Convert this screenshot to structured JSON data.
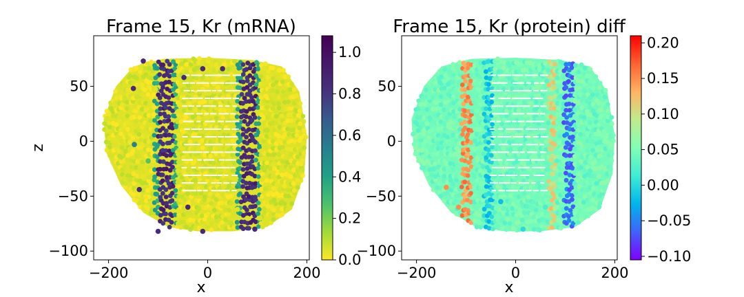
{
  "chart_data": [
    {
      "type": "scatter",
      "title": "Frame 15, Kr (mRNA)",
      "xlabel": "x",
      "ylabel": "z",
      "xlim": [
        -230,
        205
      ],
      "ylim": [
        -108,
        96
      ],
      "x_ticks": [
        -200,
        0,
        200
      ],
      "x_tick_labels": [
        "−200",
        "0",
        "200"
      ],
      "y_ticks": [
        -100,
        -50,
        0,
        50
      ],
      "y_tick_labels": [
        "−100",
        "−50",
        "0",
        "50"
      ],
      "grid": false,
      "colormap": "viridis_r",
      "colorbar": {
        "range": [
          0.0,
          1.08
        ],
        "ticks": [
          0.0,
          0.2,
          0.4,
          0.6,
          0.8,
          1.0
        ],
        "tick_labels": [
          "0.0",
          "0.2",
          "0.4",
          "0.6",
          "0.8",
          "1.0"
        ]
      },
      "embryo_outline": [
        [
          -210,
          20
        ],
        [
          -185,
          50
        ],
        [
          -150,
          68
        ],
        [
          -90,
          75
        ],
        [
          0,
          76
        ],
        [
          90,
          74
        ],
        [
          150,
          68
        ],
        [
          185,
          45
        ],
        [
          200,
          5
        ],
        [
          195,
          -30
        ],
        [
          170,
          -62
        ],
        [
          120,
          -78
        ],
        [
          50,
          -82
        ],
        [
          -20,
          -82
        ],
        [
          -80,
          -78
        ],
        [
          -130,
          -65
        ],
        [
          -175,
          -40
        ],
        [
          -205,
          -10
        ]
      ],
      "background_value": 0.05,
      "stripes": [
        {
          "center_x": -85,
          "width": 30,
          "value": 0.95
        },
        {
          "center_x": 82,
          "width": 30,
          "value": 0.95
        }
      ],
      "stripe_shoulder_value": 0.45,
      "hole_region": {
        "x_range": [
          -50,
          55
        ],
        "z_range": [
          -45,
          65
        ]
      },
      "outlier_points": [
        {
          "x": -138,
          "z": -44,
          "value": 0.95
        },
        {
          "x": -148,
          "z": -3,
          "value": 0.6
        },
        {
          "x": -150,
          "z": 48,
          "value": 0.95
        },
        {
          "x": -130,
          "z": 73,
          "value": 0.95
        },
        {
          "x": -105,
          "z": 47,
          "value": 0.05
        },
        {
          "x": -48,
          "z": 58,
          "value": 0.95
        },
        {
          "x": -25,
          "z": 48,
          "value": 0.05
        },
        {
          "x": 5,
          "z": 65,
          "value": 0.05
        },
        {
          "x": -10,
          "z": 66,
          "value": 0.95
        },
        {
          "x": 30,
          "z": 66,
          "value": 0.95
        },
        {
          "x": -120,
          "z": -18,
          "value": 0.3
        },
        {
          "x": -60,
          "z": -27,
          "value": 0.05
        },
        {
          "x": -40,
          "z": -60,
          "value": 0.95
        },
        {
          "x": -10,
          "z": -82,
          "value": 0.95
        },
        {
          "x": 15,
          "z": -78,
          "value": 0.05
        },
        {
          "x": 60,
          "z": -62,
          "value": 0.05
        },
        {
          "x": 105,
          "z": -70,
          "value": 0.05
        },
        {
          "x": 95,
          "z": -80,
          "value": 0.95
        },
        {
          "x": 80,
          "z": -70,
          "value": 0.05
        },
        {
          "x": 110,
          "z": -35,
          "value": 0.05
        },
        {
          "x": 120,
          "z": 10,
          "value": 0.1
        },
        {
          "x": -100,
          "z": -82,
          "value": 0.95
        }
      ]
    },
    {
      "type": "scatter",
      "title": "Frame 15, Kr (protein) diff",
      "xlabel": "x",
      "ylabel": "",
      "xlim": [
        -230,
        205
      ],
      "ylim": [
        -108,
        96
      ],
      "x_ticks": [
        -200,
        0,
        200
      ],
      "x_tick_labels": [
        "−200",
        "0",
        "200"
      ],
      "y_ticks": [
        -100,
        -50,
        0,
        50
      ],
      "y_tick_labels": [
        "−100",
        "−50",
        "0",
        "50"
      ],
      "grid": false,
      "colormap": "rainbow",
      "colorbar": {
        "range": [
          -0.105,
          0.21
        ],
        "ticks": [
          -0.1,
          -0.05,
          0.0,
          0.05,
          0.1,
          0.15,
          0.2
        ],
        "tick_labels": [
          "−0.10",
          "−0.05",
          "0.00",
          "0.05",
          "0.10",
          "0.15",
          "0.20"
        ]
      },
      "embryo_outline": [
        [
          -210,
          20
        ],
        [
          -185,
          50
        ],
        [
          -150,
          68
        ],
        [
          -90,
          75
        ],
        [
          0,
          76
        ],
        [
          90,
          74
        ],
        [
          150,
          68
        ],
        [
          185,
          45
        ],
        [
          200,
          5
        ],
        [
          195,
          -30
        ],
        [
          170,
          -62
        ],
        [
          120,
          -78
        ],
        [
          50,
          -82
        ],
        [
          -20,
          -82
        ],
        [
          -80,
          -78
        ],
        [
          -130,
          -65
        ],
        [
          -175,
          -40
        ],
        [
          -205,
          -10
        ]
      ],
      "background_value": 0.045,
      "stripes": [
        {
          "center_x": -100,
          "width": 22,
          "value": 0.15
        },
        {
          "center_x": -55,
          "width": 18,
          "value": -0.01
        },
        {
          "center_x": 75,
          "width": 16,
          "value": 0.11
        },
        {
          "center_x": 108,
          "width": 22,
          "value": -0.06
        }
      ],
      "hole_region": {
        "x_range": [
          -50,
          55
        ],
        "z_range": [
          -45,
          65
        ]
      },
      "outlier_points": [
        {
          "x": -140,
          "z": -42,
          "value": 0.15
        },
        {
          "x": -115,
          "z": -60,
          "value": 0.15
        },
        {
          "x": -30,
          "z": -55,
          "value": -0.02
        },
        {
          "x": 15,
          "z": -80,
          "value": 0.0
        },
        {
          "x": 60,
          "z": -60,
          "value": 0.02
        }
      ]
    }
  ]
}
